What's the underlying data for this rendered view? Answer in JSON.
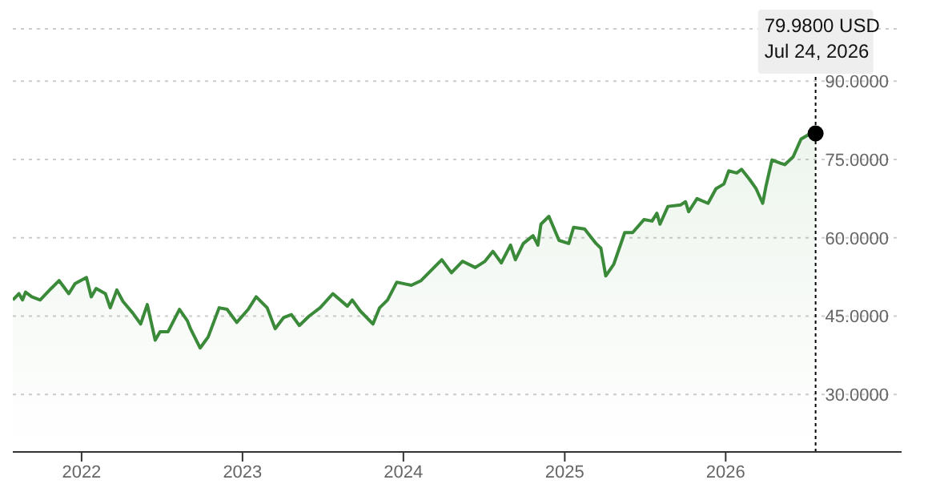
{
  "chart_data": {
    "type": "area",
    "x": [
      "2021-07-29",
      "2021-08-12",
      "2021-08-20",
      "2021-08-27",
      "2021-09-10",
      "2021-09-29",
      "2021-10-24",
      "2021-11-11",
      "2021-12-03",
      "2021-12-17",
      "2022-01-12",
      "2022-01-23",
      "2022-02-03",
      "2022-02-24",
      "2022-03-07",
      "2022-03-22",
      "2022-04-05",
      "2022-04-27",
      "2022-05-15",
      "2022-05-30",
      "2022-06-17",
      "2022-06-28",
      "2022-07-16",
      "2022-08-11",
      "2022-08-29",
      "2022-09-05",
      "2022-09-27",
      "2022-10-15",
      "2022-11-09",
      "2022-11-27",
      "2022-12-19",
      "2023-01-14",
      "2023-02-01",
      "2023-02-26",
      "2023-03-16",
      "2023-04-04",
      "2023-04-22",
      "2023-05-10",
      "2023-06-01",
      "2023-06-26",
      "2023-07-25",
      "2023-08-27",
      "2023-09-07",
      "2023-09-25",
      "2023-10-24",
      "2023-11-08",
      "2023-11-26",
      "2023-12-17",
      "2024-01-19",
      "2024-02-10",
      "2024-03-28",
      "2024-04-19",
      "2024-05-14",
      "2024-06-12",
      "2024-07-04",
      "2024-07-22",
      "2024-08-10",
      "2024-08-31",
      "2024-09-11",
      "2024-09-29",
      "2024-10-21",
      "2024-11-01",
      "2024-11-08",
      "2024-11-26",
      "2024-12-19",
      "2025-01-10",
      "2025-01-21",
      "2025-02-15",
      "2025-03-13",
      "2025-03-24",
      "2025-04-04",
      "2025-04-22",
      "2025-05-17",
      "2025-06-04",
      "2025-06-30",
      "2025-07-18",
      "2025-07-29",
      "2025-08-05",
      "2025-08-23",
      "2025-09-21",
      "2025-10-02",
      "2025-10-09",
      "2025-10-28",
      "2025-11-22",
      "2025-12-10",
      "2025-12-28",
      "2026-01-08",
      "2026-01-26",
      "2026-02-06",
      "2026-02-24",
      "2026-03-11",
      "2026-03-26",
      "2026-04-02",
      "2026-04-16",
      "2026-05-05",
      "2026-05-15",
      "2026-06-03",
      "2026-06-21",
      "2026-07-09",
      "2026-07-24"
    ],
    "series": [
      {
        "color": "#3a8a3a",
        "values": [
          48.1,
          49.3,
          48.1,
          49.6,
          48.7,
          48.1,
          50.3,
          51.8,
          49.3,
          51.2,
          52.4,
          48.7,
          50.3,
          49.3,
          46.6,
          50,
          47.8,
          45.6,
          43.5,
          47.2,
          40.4,
          42,
          42,
          46.3,
          44.1,
          42.6,
          38.9,
          41,
          46.6,
          46.3,
          43.8,
          46.3,
          48.7,
          46.6,
          42.6,
          44.7,
          45.3,
          43.2,
          45,
          46.6,
          49.3,
          46.9,
          48.1,
          46,
          43.5,
          46.6,
          48.1,
          51.5,
          50.9,
          51.8,
          55.8,
          53.3,
          55.5,
          54.3,
          55.5,
          57.4,
          55.2,
          58.6,
          55.8,
          58.9,
          60.4,
          58.6,
          62.6,
          64.1,
          59.5,
          58.9,
          62,
          61.7,
          58.9,
          58,
          52.7,
          54.9,
          61,
          61,
          63.5,
          63.2,
          64.7,
          62.6,
          66,
          66.3,
          66.9,
          65,
          67.5,
          66.6,
          69.4,
          70.3,
          72.8,
          72.4,
          73.1,
          71.2,
          69.4,
          66.6,
          69.7,
          74.9,
          74.3,
          74,
          75.5,
          78.9,
          79.8,
          79.98
        ]
      }
    ],
    "xlim": [
      "2021-07-29",
      "2027-02-04"
    ],
    "xticks": [
      {
        "value": "2022-01-01",
        "label": "2022"
      },
      {
        "value": "2023-01-01",
        "label": "2023"
      },
      {
        "value": "2024-01-01",
        "label": "2024"
      },
      {
        "value": "2025-01-01",
        "label": "2025"
      },
      {
        "value": "2026-01-01",
        "label": "2026"
      }
    ],
    "ylim": [
      19,
      100
    ],
    "yticks": [
      {
        "value": 30,
        "label": "30.0000"
      },
      {
        "value": 45,
        "label": "45.0000"
      },
      {
        "value": 60,
        "label": "60.0000"
      },
      {
        "value": 75,
        "label": "75.0000"
      },
      {
        "value": 90,
        "label": "90.0000"
      }
    ],
    "grid": "y",
    "ref_lines": [
      {
        "axis": "x",
        "value": "2026-07-24",
        "color": "#000000",
        "line_style": "dotted"
      }
    ],
    "annotations": [
      "79.9800 USD",
      "Jul 24, 2026"
    ]
  }
}
